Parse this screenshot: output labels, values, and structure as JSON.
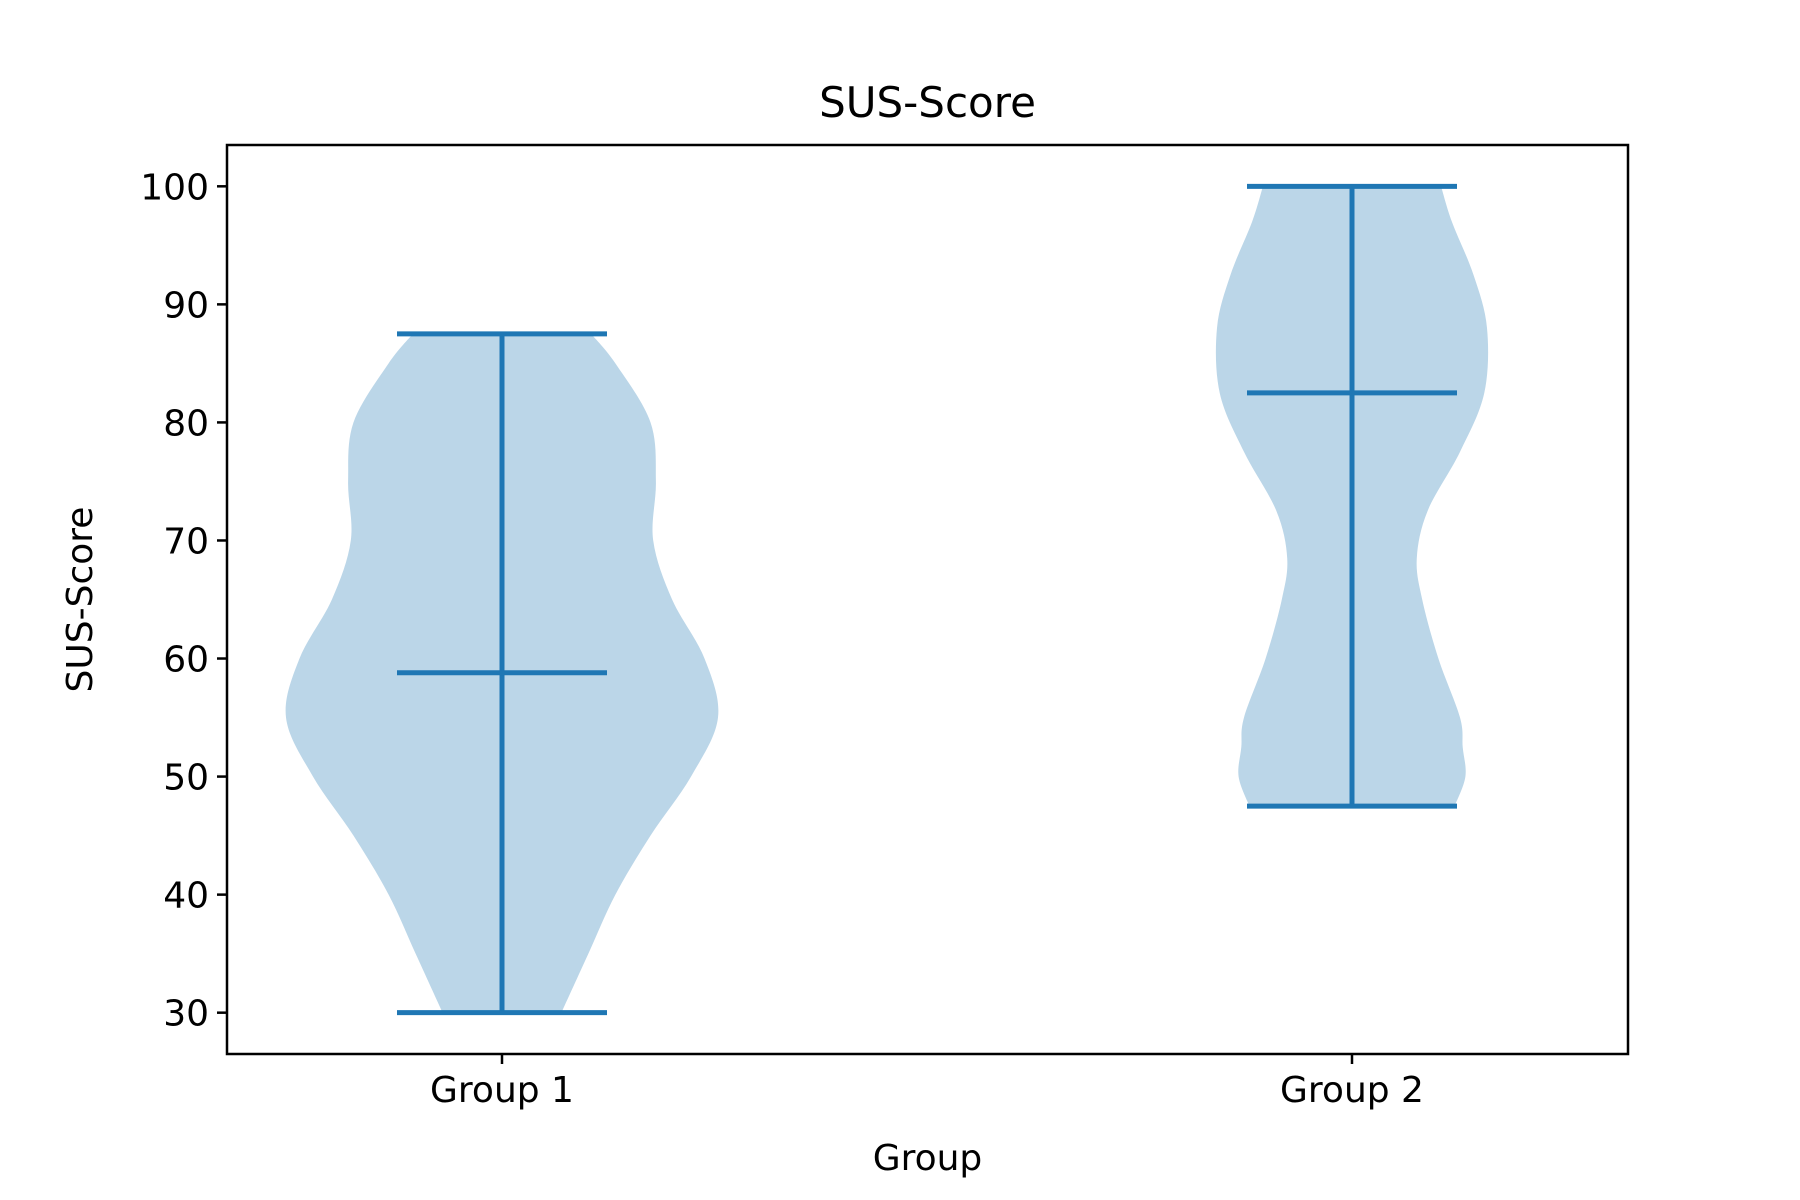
{
  "chart_data": {
    "type": "violin",
    "title": "SUS-Score",
    "xlabel": "Group",
    "ylabel": "SUS-Score",
    "categories": [
      "Group 1",
      "Group 2"
    ],
    "ylim": [
      26.5,
      103.5
    ],
    "yticks": [
      30,
      40,
      50,
      60,
      70,
      80,
      90,
      100
    ],
    "grid": false,
    "colors": {
      "fill": "#bbd6e8",
      "line": "#1f77b4",
      "frame": "#000000"
    },
    "series": [
      {
        "category": "Group 1",
        "min": 30,
        "max": 87.5,
        "mean": 58.8,
        "density_profile": [
          [
            30,
            0.22
          ],
          [
            35,
            0.32
          ],
          [
            40,
            0.42
          ],
          [
            45,
            0.55
          ],
          [
            50,
            0.7
          ],
          [
            55,
            0.8
          ],
          [
            60,
            0.75
          ],
          [
            65,
            0.63
          ],
          [
            70,
            0.56
          ],
          [
            75,
            0.57
          ],
          [
            80,
            0.55
          ],
          [
            85,
            0.42
          ],
          [
            87.5,
            0.33
          ]
        ]
      },
      {
        "category": "Group 2",
        "min": 47.5,
        "max": 100,
        "mean": 82.5,
        "density_profile": [
          [
            47.5,
            0.38
          ],
          [
            50,
            0.42
          ],
          [
            52.5,
            0.41
          ],
          [
            55,
            0.4
          ],
          [
            60,
            0.32
          ],
          [
            65,
            0.26
          ],
          [
            68.5,
            0.24
          ],
          [
            72.5,
            0.28
          ],
          [
            77.5,
            0.4
          ],
          [
            82.5,
            0.49
          ],
          [
            88,
            0.5
          ],
          [
            92.5,
            0.45
          ],
          [
            97,
            0.37
          ],
          [
            100,
            0.33
          ]
        ]
      }
    ]
  }
}
